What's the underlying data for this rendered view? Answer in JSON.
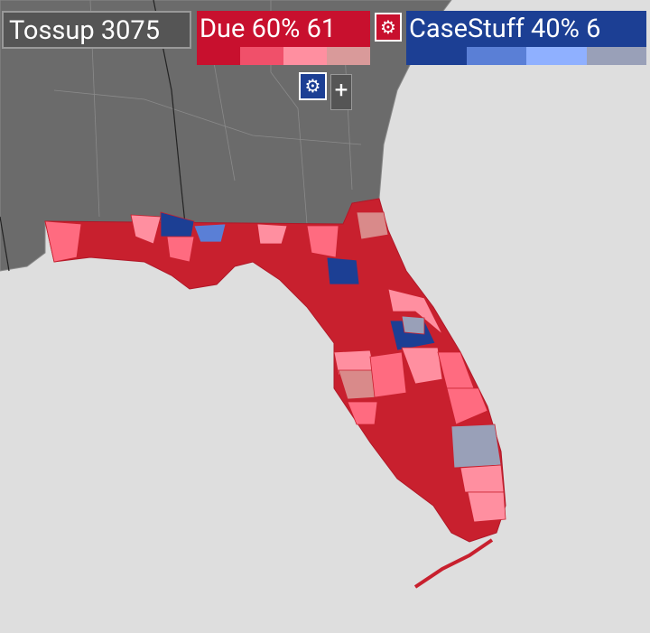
{
  "header": {
    "tossup": "Tossup 3075",
    "party_a": "Due 60% 61",
    "party_b": "CaseStuff 40% 6"
  },
  "controls": {
    "add": "+"
  }
}
